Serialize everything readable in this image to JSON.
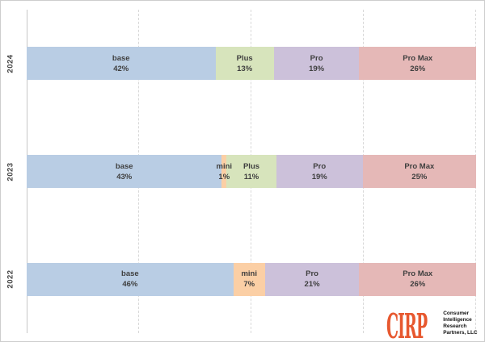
{
  "chart_data": {
    "type": "bar",
    "stacked": true,
    "percent_of_total": true,
    "orientation": "horizontal",
    "title": "",
    "xlabel": "",
    "ylabel": "",
    "xlim": [
      0,
      100
    ],
    "grid": true,
    "gridlines_percent": [
      25,
      50,
      75,
      100
    ],
    "legend": "none (labels inside segments)",
    "categories": [
      "2024",
      "2023",
      "2022"
    ],
    "colors": {
      "base": "#B9CDE4",
      "mini": "#FBCFA5",
      "Plus": "#D7E4BC",
      "Pro": "#CCC1DA",
      "Pro Max": "#E5B8B7"
    },
    "rows": [
      {
        "category": "2024",
        "segments": [
          {
            "name": "base",
            "value": 42,
            "value_label": "42%"
          },
          {
            "name": "Plus",
            "value": 13,
            "value_label": "13%"
          },
          {
            "name": "Pro",
            "value": 19,
            "value_label": "19%"
          },
          {
            "name": "Pro Max",
            "value": 26,
            "value_label": "26%"
          }
        ]
      },
      {
        "category": "2023",
        "segments": [
          {
            "name": "base",
            "value": 43,
            "value_label": "43%"
          },
          {
            "name": "mini",
            "value": 1,
            "value_label": "1%"
          },
          {
            "name": "Plus",
            "value": 11,
            "value_label": "11%"
          },
          {
            "name": "Pro",
            "value": 19,
            "value_label": "19%"
          },
          {
            "name": "Pro Max",
            "value": 25,
            "value_label": "25%"
          }
        ]
      },
      {
        "category": "2022",
        "segments": [
          {
            "name": "base",
            "value": 46,
            "value_label": "46%"
          },
          {
            "name": "mini",
            "value": 7,
            "value_label": "7%"
          },
          {
            "name": "Pro",
            "value": 21,
            "value_label": "21%"
          },
          {
            "name": "Pro Max",
            "value": 26,
            "value_label": "26%"
          }
        ]
      }
    ]
  },
  "logo": {
    "wordmark": "CIRP",
    "wordmark_color": "#E7582F",
    "lines": [
      "Consumer",
      "Intelligence",
      "Research",
      "Partners, LLC"
    ]
  }
}
